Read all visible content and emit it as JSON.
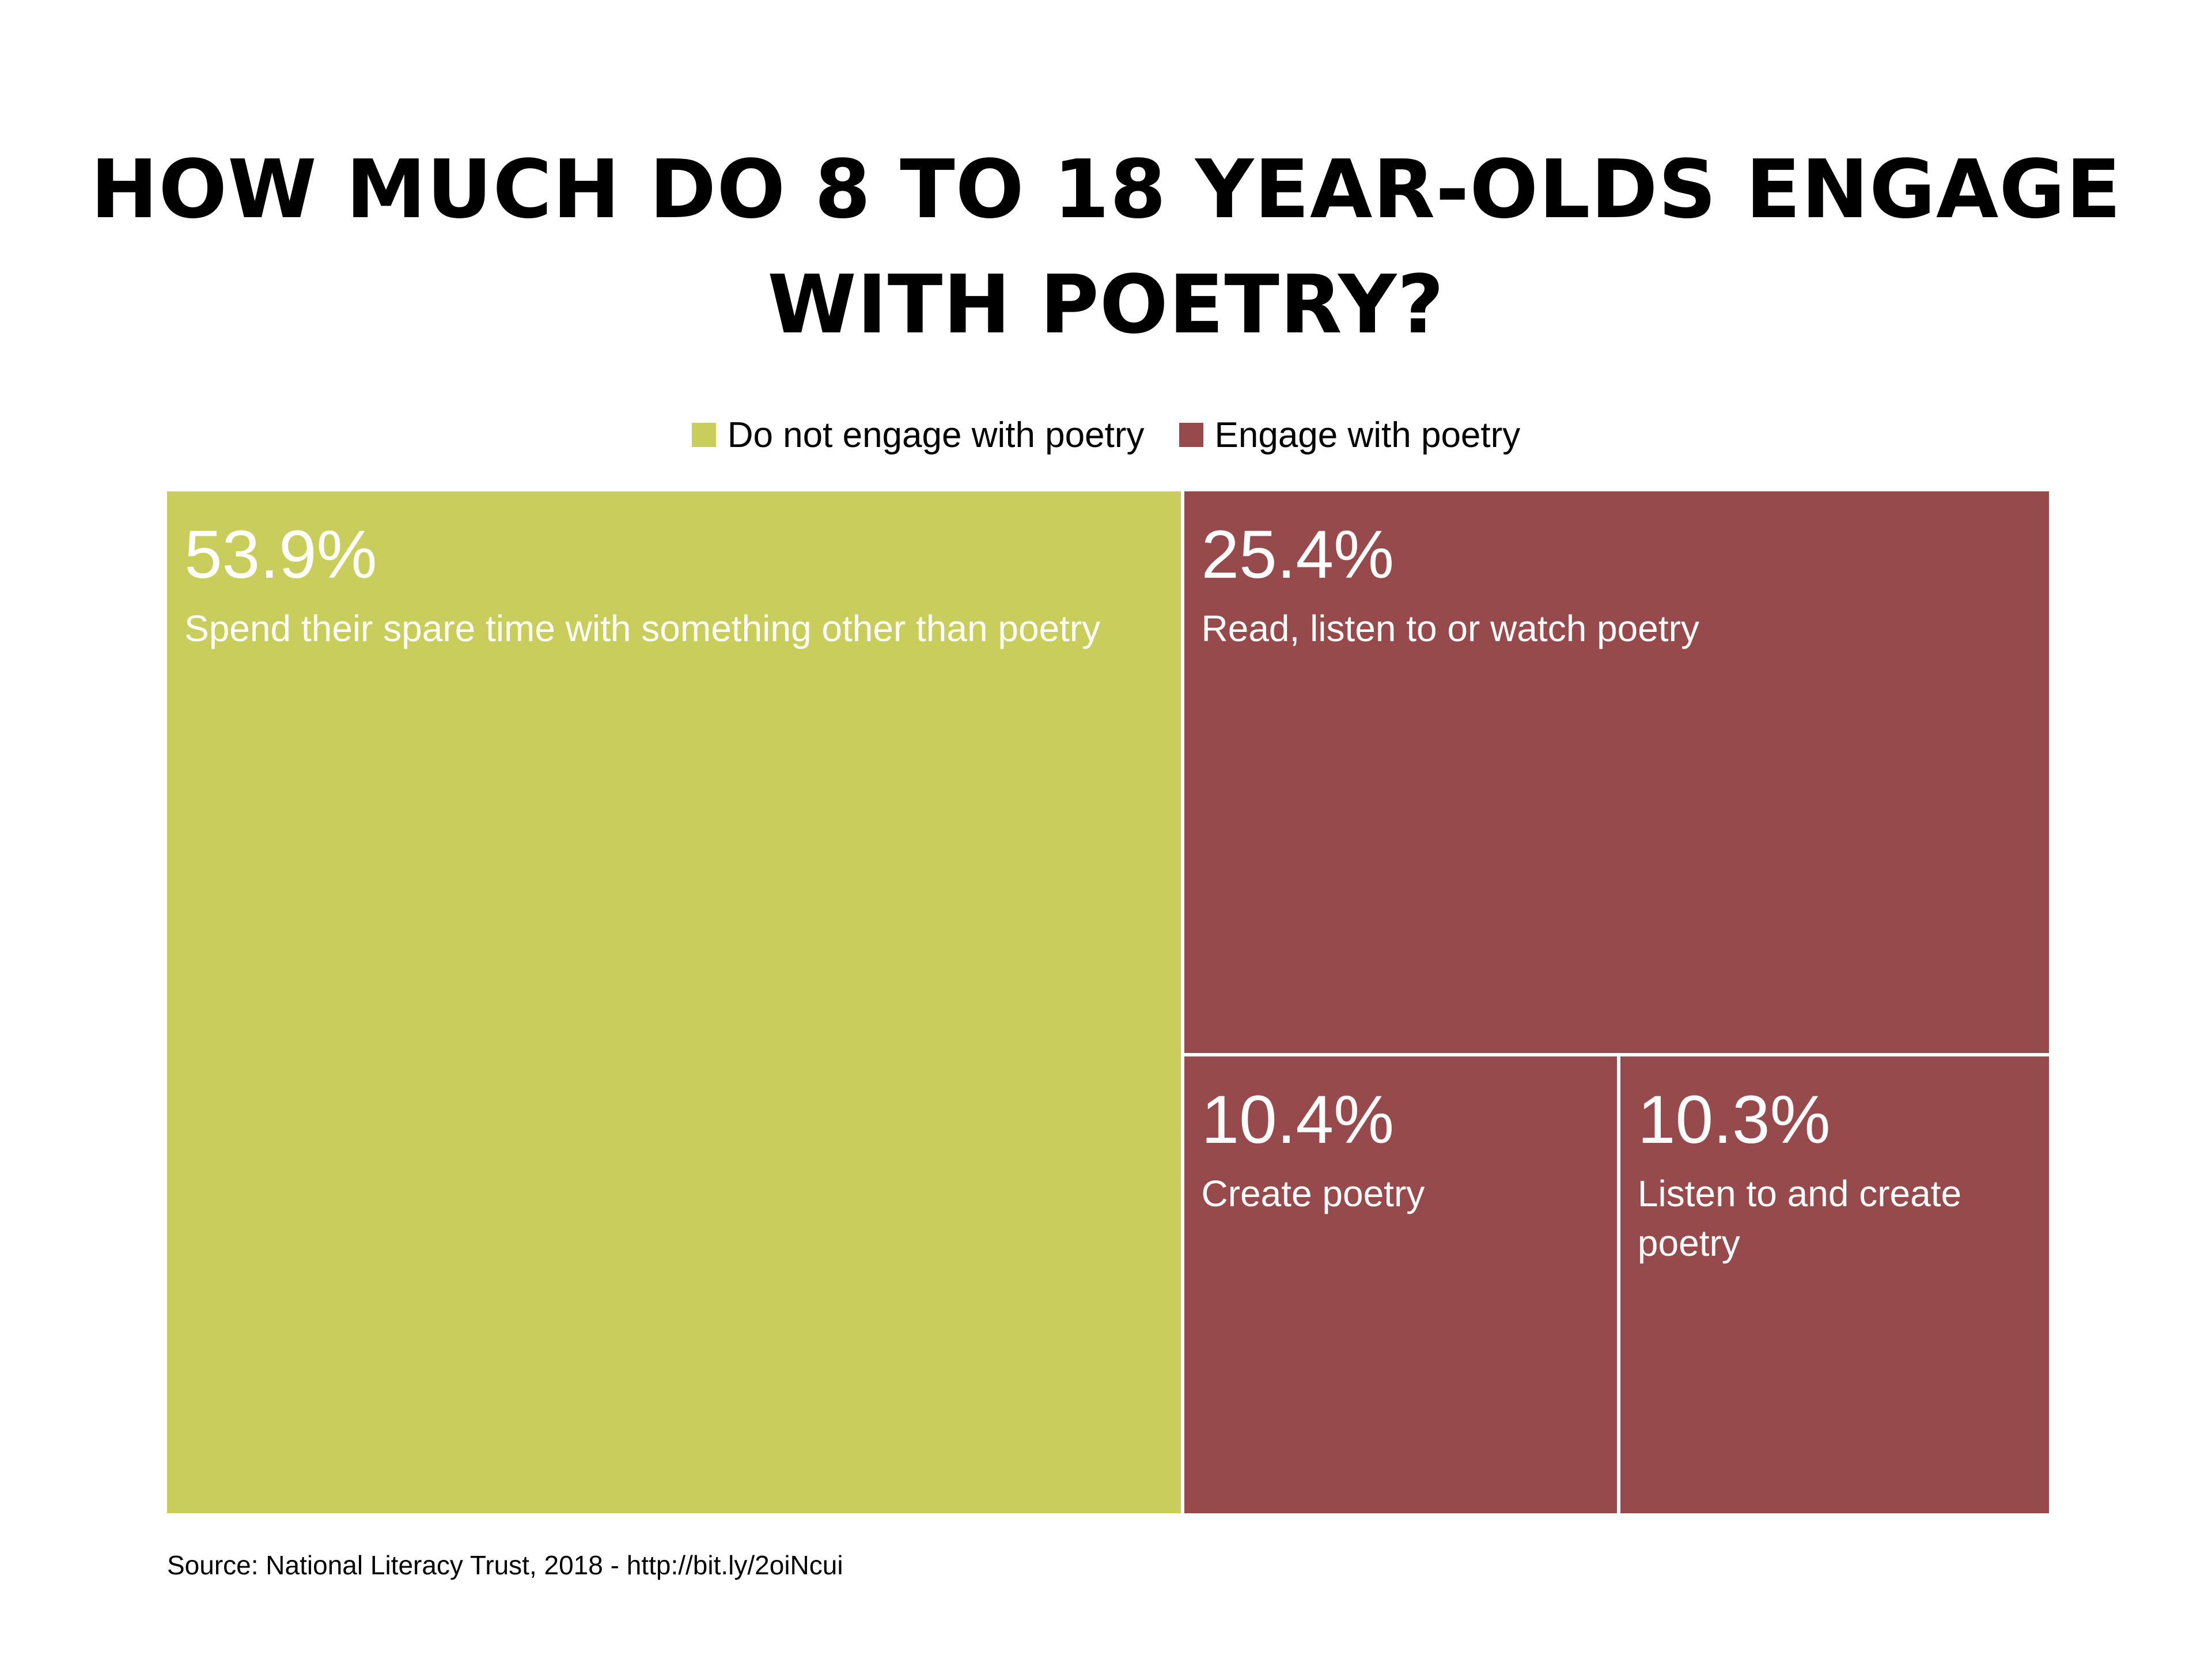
{
  "chart_data": {
    "type": "treemap",
    "title": "HOW MUCH DO 8 TO 18 YEAR-OLDS ENGAGE WITH POETRY?",
    "legend": [
      {
        "name": "Do not engage with poetry",
        "color": "#c9cd5b"
      },
      {
        "name": "Engage with poetry",
        "color": "#974a4b"
      }
    ],
    "legend_placement": "top-center",
    "tiles": [
      {
        "group": "Do not engage with poetry",
        "value": 53.9,
        "value_label": "53.9%",
        "label": "Spend their spare time with something other than poetry"
      },
      {
        "group": "Engage with poetry",
        "value": 25.4,
        "value_label": "25.4%",
        "label": "Read, listen to or watch poetry"
      },
      {
        "group": "Engage with poetry",
        "value": 10.4,
        "value_label": "10.4%",
        "label": "Create poetry"
      },
      {
        "group": "Engage with poetry",
        "value": 10.3,
        "value_label": "10.3%",
        "label": "Listen to and create poetry"
      }
    ],
    "source": "Source: National Literacy Trust, 2018 - http://bit.ly/2oiNcui"
  }
}
